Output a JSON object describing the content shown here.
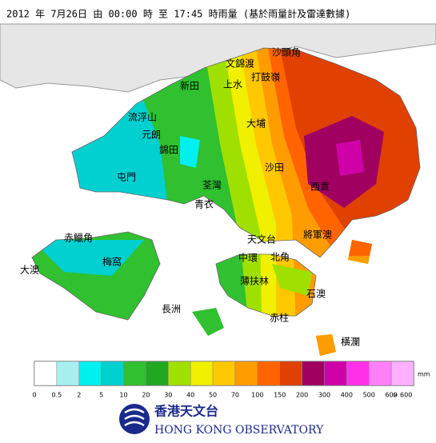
{
  "header": {
    "title": "2012 年  7月26日 由 00:00 時 至 17:45 時雨量 (基於雨量計及雷達數據)"
  },
  "places": [
    {
      "label": "沙頭角"
    },
    {
      "label": "文錦渡"
    },
    {
      "label": "打鼓嶺"
    },
    {
      "label": "新田"
    },
    {
      "label": "上水"
    },
    {
      "label": "流浮山"
    },
    {
      "label": "大埔"
    },
    {
      "label": "元朗"
    },
    {
      "label": "錦田"
    },
    {
      "label": "沙田"
    },
    {
      "label": "屯門"
    },
    {
      "label": "荃灣"
    },
    {
      "label": "西貢"
    },
    {
      "label": "青衣"
    },
    {
      "label": "赤鱲角"
    },
    {
      "label": "天文台"
    },
    {
      "label": "將軍澳"
    },
    {
      "label": "梅窩"
    },
    {
      "label": "大澳"
    },
    {
      "label": "中環"
    },
    {
      "label": "北角"
    },
    {
      "label": "薄扶林"
    },
    {
      "label": "石澳"
    },
    {
      "label": "長洲"
    },
    {
      "label": "赤柱"
    },
    {
      "label": "橫瀾"
    }
  ],
  "legend": {
    "unit": "mm",
    "colors": [
      "#ffffff",
      "#a8f0f0",
      "#00f0f0",
      "#00d0d0",
      "#30c030",
      "#20a820",
      "#a0e000",
      "#f0f000",
      "#ffc800",
      "#ff9c00",
      "#ff6400",
      "#e04000",
      "#a00060",
      "#d000a8",
      "#ff30e8",
      "#ff80f8",
      "#ffb0ff"
    ],
    "labels": [
      "0",
      "0.5",
      "2",
      "5",
      "10",
      "20",
      "30",
      "40",
      "50",
      "70",
      "100",
      "150",
      "200",
      "300",
      "400",
      "500",
      "600",
      "> 600"
    ]
  },
  "logo": {
    "chinese": "香港天文台",
    "english": "HONG KONG OBSERVATORY"
  }
}
